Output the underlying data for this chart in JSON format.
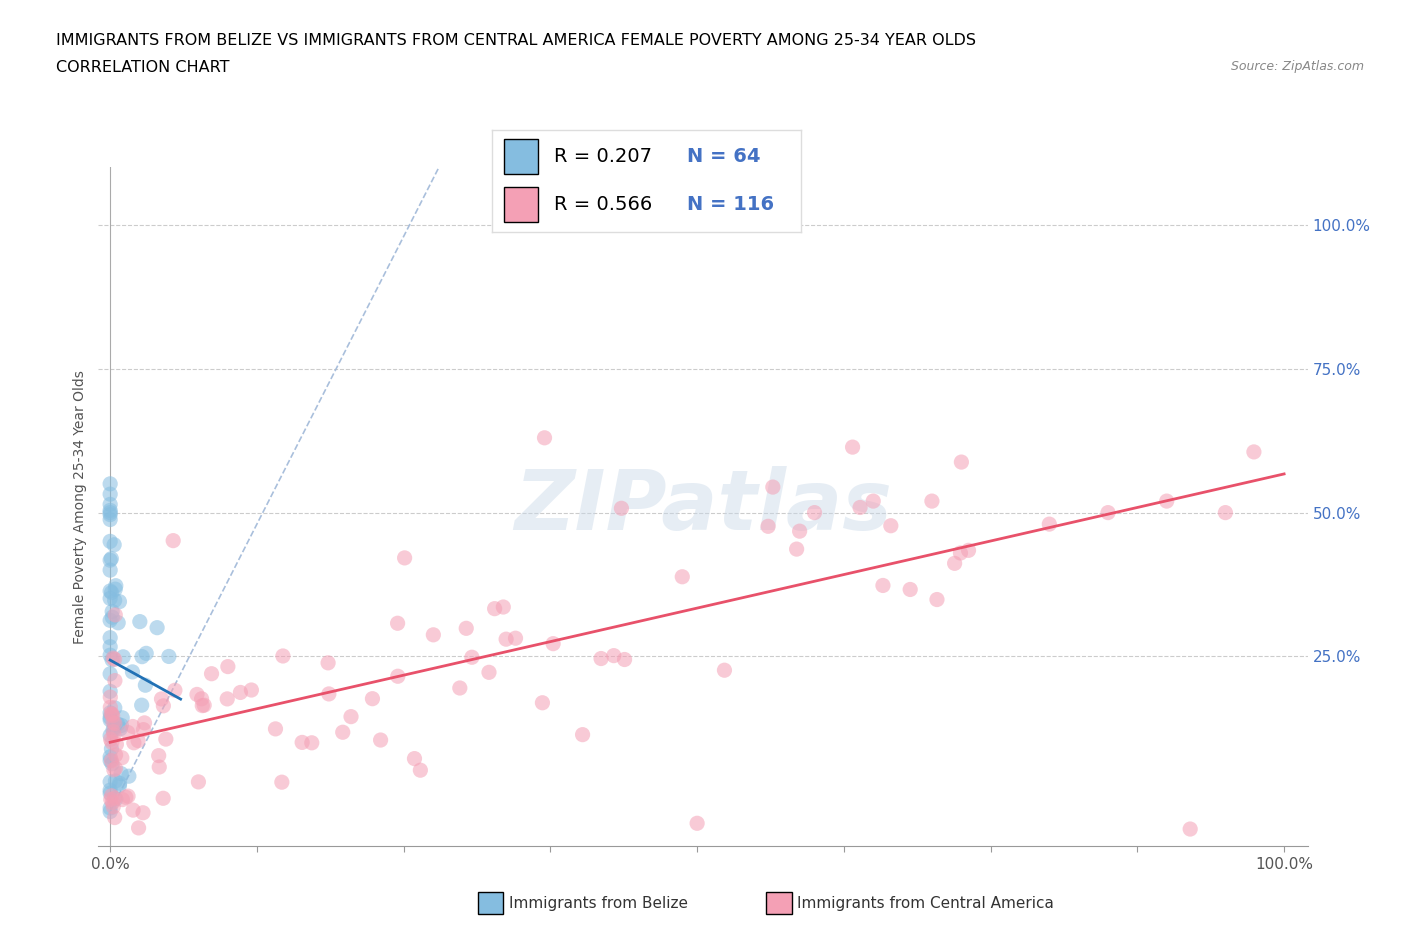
{
  "title": "IMMIGRANTS FROM BELIZE VS IMMIGRANTS FROM CENTRAL AMERICA FEMALE POVERTY AMONG 25-34 YEAR OLDS",
  "subtitle": "CORRELATION CHART",
  "source": "Source: ZipAtlas.com",
  "ylabel": "Female Poverty Among 25-34 Year Olds",
  "xlim": [
    -0.01,
    1.02
  ],
  "ylim": [
    -0.08,
    1.1
  ],
  "xtick_vals": [
    0.0,
    0.125,
    0.25,
    0.375,
    0.5,
    0.625,
    0.75,
    0.875,
    1.0
  ],
  "xtick_labels_show": {
    "0.0": "0.0%",
    "1.0": "100.0%"
  },
  "ytick_vals": [
    0.25,
    0.5,
    0.75,
    1.0
  ],
  "right_ytick_labels": [
    "25.0%",
    "50.0%",
    "75.0%",
    "100.0%"
  ],
  "right_ytick_vals": [
    0.25,
    0.5,
    0.75,
    1.0
  ],
  "belize_color": "#85bde0",
  "ca_color": "#f4a0b5",
  "belize_R": 0.207,
  "belize_N": 64,
  "ca_R": 0.566,
  "ca_N": 116,
  "legend_label_belize": "Immigrants from Belize",
  "legend_label_ca": "Immigrants from Central America",
  "legend_R_color": "#4472c4",
  "watermark": "ZIPatlas",
  "title_fontsize": 11.5,
  "subtitle_fontsize": 11.5,
  "axis_label_fontsize": 10,
  "tick_fontsize": 11,
  "legend_fontsize": 14,
  "belize_line_color": "#2171b5",
  "ca_line_color": "#e8516a",
  "diagonal_color": "#a0b8d8",
  "grid_color": "#cccccc",
  "belize_reg_intercept": 0.155,
  "belize_reg_slope": 0.55,
  "ca_reg_intercept": 0.075,
  "ca_reg_slope": 0.55
}
